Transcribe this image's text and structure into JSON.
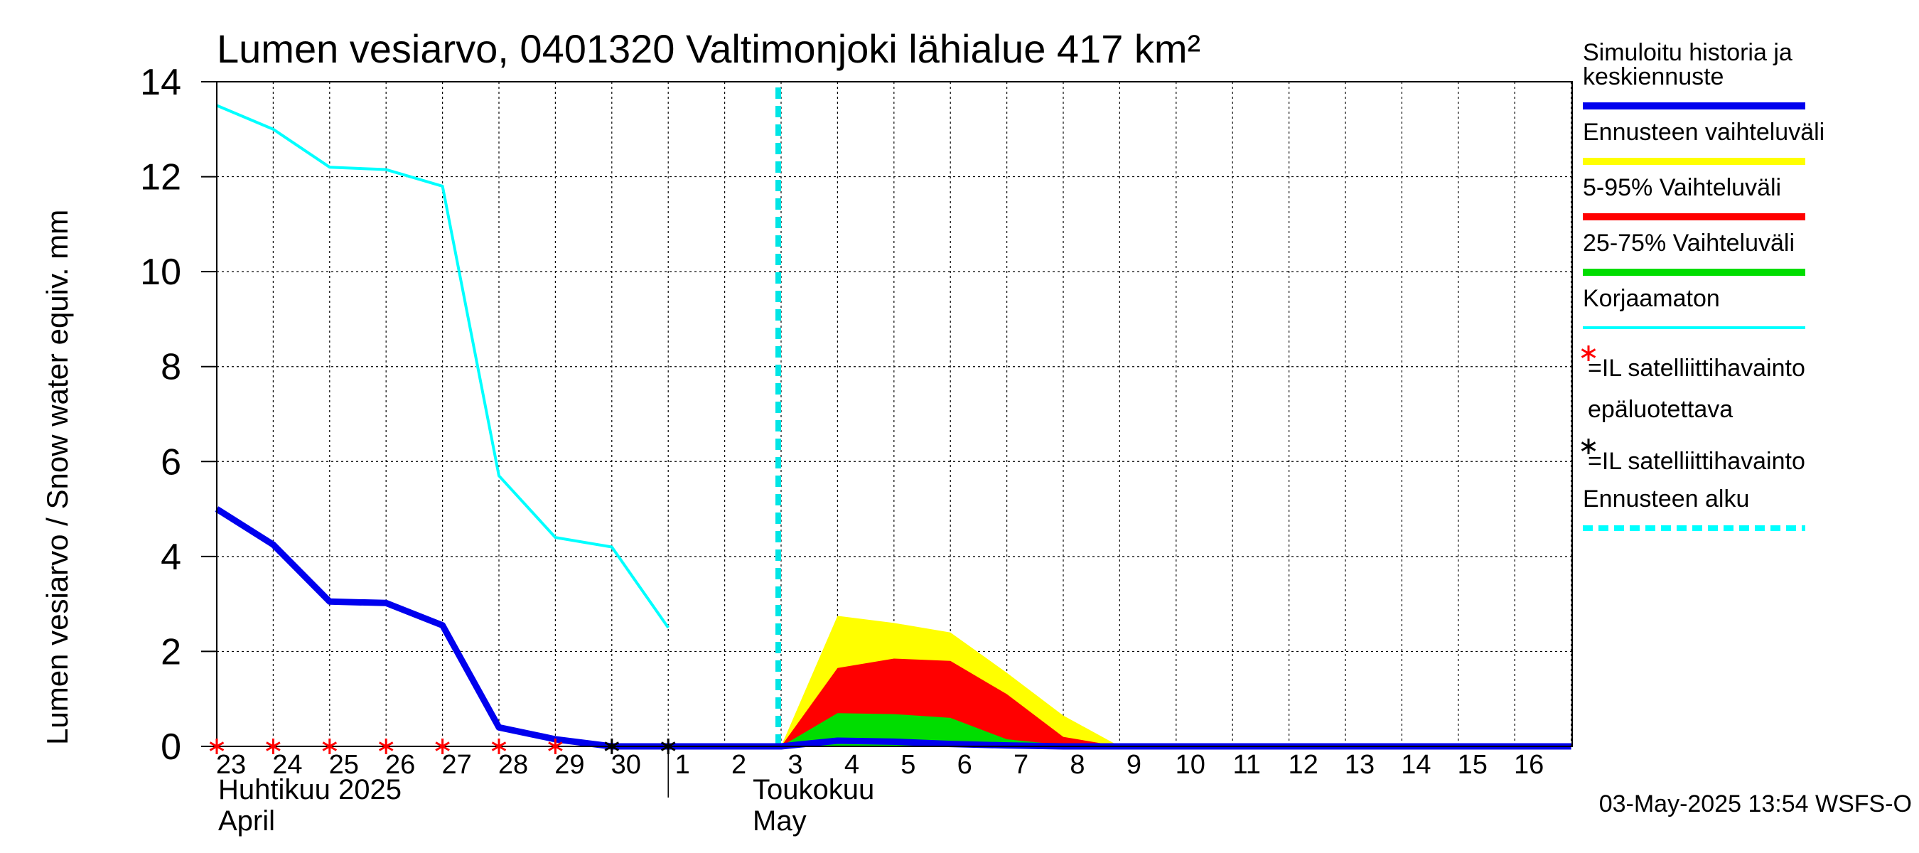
{
  "chart_data": {
    "type": "area",
    "title": "Lumen vesiarvo, 0401320 Valtimonjoki lähialue 417 km²",
    "ylabel": "Lumen vesiarvo / Snow water equiv.    mm",
    "ylim": [
      0,
      14
    ],
    "yticks": [
      "0",
      "2",
      "4",
      "6",
      "8",
      "10",
      "12",
      "14"
    ],
    "xlim": [
      0,
      24
    ],
    "x_ticks": [
      {
        "x": 0,
        "label": "23"
      },
      {
        "x": 1,
        "label": "24"
      },
      {
        "x": 2,
        "label": "25"
      },
      {
        "x": 3,
        "label": "26"
      },
      {
        "x": 4,
        "label": "27"
      },
      {
        "x": 5,
        "label": "28"
      },
      {
        "x": 6,
        "label": "29"
      },
      {
        "x": 7,
        "label": "30"
      },
      {
        "x": 8,
        "label": "1"
      },
      {
        "x": 9,
        "label": "2"
      },
      {
        "x": 10,
        "label": "3"
      },
      {
        "x": 11,
        "label": "4"
      },
      {
        "x": 12,
        "label": "5"
      },
      {
        "x": 13,
        "label": "6"
      },
      {
        "x": 14,
        "label": "7"
      },
      {
        "x": 15,
        "label": "8"
      },
      {
        "x": 16,
        "label": "9"
      },
      {
        "x": 17,
        "label": "10"
      },
      {
        "x": 18,
        "label": "11"
      },
      {
        "x": 19,
        "label": "12"
      },
      {
        "x": 20,
        "label": "13"
      },
      {
        "x": 21,
        "label": "14"
      },
      {
        "x": 22,
        "label": "15"
      },
      {
        "x": 23,
        "label": "16"
      }
    ],
    "month_labels": {
      "april_fi": "Huhtikuu  2025",
      "april_en": "April",
      "may_fi": "Toukokuu",
      "may_en": "May"
    },
    "month_boundary_x": 8,
    "forecast_start_x": 10,
    "grid": true,
    "series": [
      {
        "name": "Ennusteen vaihteluväli",
        "kind": "band",
        "color": "#ffff00",
        "x": [
          10,
          11,
          12,
          13,
          14,
          15,
          16
        ],
        "lower": [
          0,
          0,
          0,
          0,
          0,
          0,
          0
        ],
        "upper": [
          0,
          2.75,
          2.6,
          2.4,
          1.55,
          0.65,
          0
        ]
      },
      {
        "name": "5-95% Vaihteluväli",
        "kind": "band",
        "color": "#ff0000",
        "x": [
          10,
          11,
          12,
          13,
          14,
          15,
          16
        ],
        "lower": [
          0,
          0,
          0,
          0,
          0,
          0,
          0
        ],
        "upper": [
          0,
          1.65,
          1.85,
          1.8,
          1.1,
          0.2,
          0
        ]
      },
      {
        "name": "25-75% Vaihteluväli",
        "kind": "band",
        "color": "#00dd00",
        "x": [
          10,
          11,
          12,
          13,
          14,
          15,
          16
        ],
        "lower": [
          0,
          0,
          0,
          0,
          0,
          0,
          0
        ],
        "upper": [
          0,
          0.7,
          0.68,
          0.6,
          0.15,
          0.03,
          0
        ]
      },
      {
        "name": "Korjaamaton",
        "kind": "line",
        "color": "#00ffff",
        "x": [
          0,
          1,
          2,
          3,
          4,
          5,
          6,
          7,
          8
        ],
        "y": [
          13.5,
          13.0,
          12.2,
          12.15,
          11.8,
          5.7,
          4.4,
          4.2,
          2.5
        ]
      },
      {
        "name": "Simuloitu historia ja keskiennuste",
        "kind": "line",
        "color": "#0000ee",
        "x": [
          0,
          1,
          2,
          3,
          4,
          5,
          6,
          7,
          8,
          9,
          10,
          11,
          12,
          13,
          14,
          15,
          16,
          24
        ],
        "y": [
          5.0,
          4.25,
          3.05,
          3.02,
          2.55,
          0.4,
          0.15,
          0,
          0,
          0,
          0,
          0.12,
          0.1,
          0.05,
          0.02,
          0,
          0,
          0
        ]
      }
    ],
    "observations": [
      {
        "name": "=IL satelliittihavainto epäluotettava",
        "color": "#ff0000",
        "x": [
          0,
          1,
          2,
          3,
          4,
          5,
          6
        ],
        "y": [
          0,
          0,
          0,
          0,
          0,
          0,
          0
        ]
      },
      {
        "name": "=IL satelliittihavainto",
        "color": "#000000",
        "x": [
          7,
          8
        ],
        "y": [
          0,
          0
        ]
      }
    ],
    "legend": {
      "placement": "right",
      "items": [
        {
          "label_lines": [
            "Simuloitu historia ja",
            "keskiennuste"
          ],
          "symbol": "line",
          "color": "#0000ee"
        },
        {
          "label_lines": [
            "Ennusteen vaihteluväli"
          ],
          "symbol": "line",
          "color": "#ffff00"
        },
        {
          "label_lines": [
            "5-95% Vaihteluväli"
          ],
          "symbol": "line",
          "color": "#ff0000"
        },
        {
          "label_lines": [
            "25-75% Vaihteluväli"
          ],
          "symbol": "line",
          "color": "#00dd00"
        },
        {
          "label_lines": [
            "Korjaamaton"
          ],
          "symbol": "thinline",
          "color": "#00ffff"
        },
        {
          "label_lines": [
            "=IL satelliittihavainto",
            "epäluotettava"
          ],
          "symbol": "star",
          "color": "#ff0000"
        },
        {
          "label_lines": [
            "=IL satelliittihavainto"
          ],
          "symbol": "star",
          "color": "#000000"
        },
        {
          "label_lines": [
            "Ennusteen alku"
          ],
          "symbol": "dashed",
          "color": "#00ffff"
        }
      ]
    },
    "footer": "03-May-2025 13:54 WSFS-O"
  }
}
